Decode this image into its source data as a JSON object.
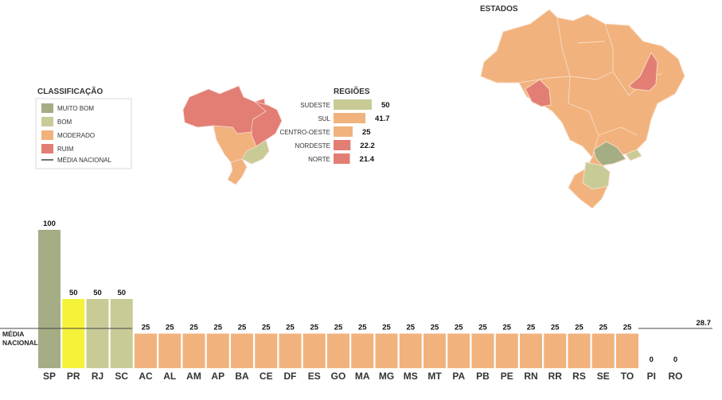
{
  "colors": {
    "muito_bom": "#a4ad84",
    "bom": "#c8cb96",
    "moderado": "#f1b27d",
    "ruim": "#e27e74",
    "highlight": "#f5f23a",
    "average_line": "#444444"
  },
  "legend": {
    "title": "CLASSIFICAÇÃO",
    "items": [
      {
        "label": "MUITO BOM",
        "color": "#a4ad84"
      },
      {
        "label": "BOM",
        "color": "#c8cb96"
      },
      {
        "label": "MODERADO",
        "color": "#f1b27d"
      },
      {
        "label": "RUIM",
        "color": "#e27e74"
      }
    ],
    "average_label": "MÉDIA NACIONAL"
  },
  "regions_map": {
    "shape": "brazil-regions-map"
  },
  "states_map": {
    "title": "ESTADOS",
    "shape": "brazil-states-map"
  },
  "chart_data": [
    {
      "type": "bar",
      "orientation": "horizontal",
      "title": "REGIÕES",
      "categories": [
        "SUDESTE",
        "SUL",
        "CENTRO-OESTE",
        "NORDESTE",
        "NORTE"
      ],
      "values": [
        50,
        41.7,
        25,
        22.2,
        21.4
      ],
      "value_labels": [
        "50",
        "41.7",
        "25",
        "22.2",
        "21.4"
      ],
      "colors": [
        "#c8cb96",
        "#f1b27d",
        "#f1b27d",
        "#e27e74",
        "#e27e74"
      ],
      "xlim": [
        0,
        50
      ]
    },
    {
      "type": "bar",
      "title": "",
      "xlabel": "",
      "ylabel": "",
      "categories": [
        "SP",
        "PR",
        "RJ",
        "SC",
        "AC",
        "AL",
        "AM",
        "AP",
        "BA",
        "CE",
        "DF",
        "ES",
        "GO",
        "MA",
        "MG",
        "MS",
        "MT",
        "PA",
        "PB",
        "PE",
        "RN",
        "RR",
        "RS",
        "SE",
        "TO",
        "PI",
        "RO"
      ],
      "values": [
        100,
        50,
        50,
        50,
        25,
        25,
        25,
        25,
        25,
        25,
        25,
        25,
        25,
        25,
        25,
        25,
        25,
        25,
        25,
        25,
        25,
        25,
        25,
        25,
        25,
        0,
        0
      ],
      "value_labels": [
        "100",
        "50",
        "50",
        "50",
        "25",
        "25",
        "25",
        "25",
        "25",
        "25",
        "25",
        "25",
        "25",
        "25",
        "25",
        "25",
        "25",
        "25",
        "25",
        "25",
        "25",
        "25",
        "25",
        "25",
        "25",
        "0",
        "0"
      ],
      "colors": [
        "#a4ad84",
        "#f5f23a",
        "#c8cb96",
        "#c8cb96",
        "#f1b27d",
        "#f1b27d",
        "#f1b27d",
        "#f1b27d",
        "#f1b27d",
        "#f1b27d",
        "#f1b27d",
        "#f1b27d",
        "#f1b27d",
        "#f1b27d",
        "#f1b27d",
        "#f1b27d",
        "#f1b27d",
        "#f1b27d",
        "#f1b27d",
        "#f1b27d",
        "#f1b27d",
        "#f1b27d",
        "#f1b27d",
        "#f1b27d",
        "#f1b27d",
        "#f1b27d",
        "#f1b27d"
      ],
      "ylim": [
        0,
        100
      ],
      "reference_line": {
        "label_line1": "MÉDIA",
        "label_line2": "NACIONAL",
        "value": 28.7,
        "value_label": "28.7"
      },
      "grid": false
    }
  ]
}
